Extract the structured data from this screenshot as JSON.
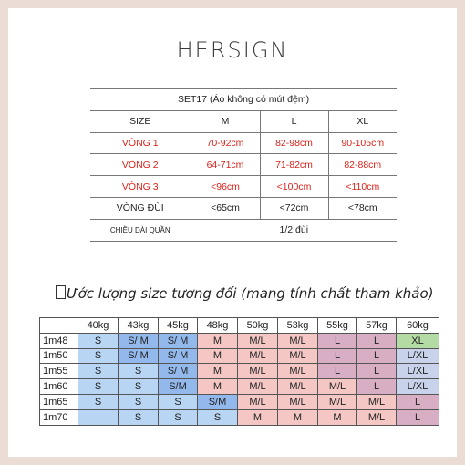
{
  "brand": "HERSIGN",
  "size_table": {
    "title": "SET17 (Áo không có mút đệm)",
    "size_label": "SIZE",
    "sizes": [
      "M",
      "L",
      "XL"
    ],
    "rows": [
      {
        "label": "VÒNG 1",
        "values": [
          "70-92cm",
          "82-98cm",
          "90-105cm"
        ]
      },
      {
        "label": "VÒNG 2",
        "values": [
          "64-71cm",
          "71-82cm",
          "82-88cm"
        ]
      },
      {
        "label": "VÒNG 3",
        "values": [
          "<96cm",
          "<100cm",
          "<110cm"
        ]
      },
      {
        "label": "VÒNG ĐÙI",
        "values": [
          "<65cm",
          "<72cm",
          "<78cm"
        ]
      }
    ],
    "length_label": "CHIỀU DÀI QUẦN",
    "length_value": "1/2 đùi",
    "accent_color": "#d9231b"
  },
  "estimate": {
    "heading": "Ước lượng size tương đối (mang tính chất tham khảo)",
    "weights": [
      "40kg",
      "43kg",
      "45kg",
      "48kg",
      "50kg",
      "53kg",
      "55kg",
      "57kg",
      "60kg"
    ],
    "rows": [
      {
        "height": "1m48",
        "cells": [
          "S",
          "S/ M",
          "S/ M",
          "M",
          "M/L",
          "M/L",
          "L",
          "L",
          "XL"
        ]
      },
      {
        "height": "1m50",
        "cells": [
          "S",
          "S/ M",
          "S/ M",
          "M",
          "M/L",
          "M/L",
          "L",
          "L",
          "L/XL"
        ]
      },
      {
        "height": "1m55",
        "cells": [
          "S",
          "S",
          "S/ M",
          "M",
          "M/L",
          "M/L",
          "L",
          "L",
          "L/XL"
        ]
      },
      {
        "height": "1m60",
        "cells": [
          "S",
          "S",
          "S/M",
          "M",
          "M/L",
          "M/L",
          "M/L",
          "L",
          "L/XL"
        ]
      },
      {
        "height": "1m65",
        "cells": [
          "S",
          "S",
          "S",
          "S/M",
          "M/L",
          "M/L",
          "M/L",
          "M/L",
          "L"
        ]
      },
      {
        "height": "1m70",
        "cells": [
          "",
          "S",
          "S",
          "S",
          "M",
          "M",
          "M",
          "M/L",
          "L"
        ]
      }
    ],
    "colors": {
      "blue": "#b8d6f4",
      "blue_dark": "#92b8ec",
      "pink": "#f4c7c4",
      "mauve": "#d8aec4",
      "green": "#b4dba3",
      "lavender": "#c8d2ea"
    }
  }
}
